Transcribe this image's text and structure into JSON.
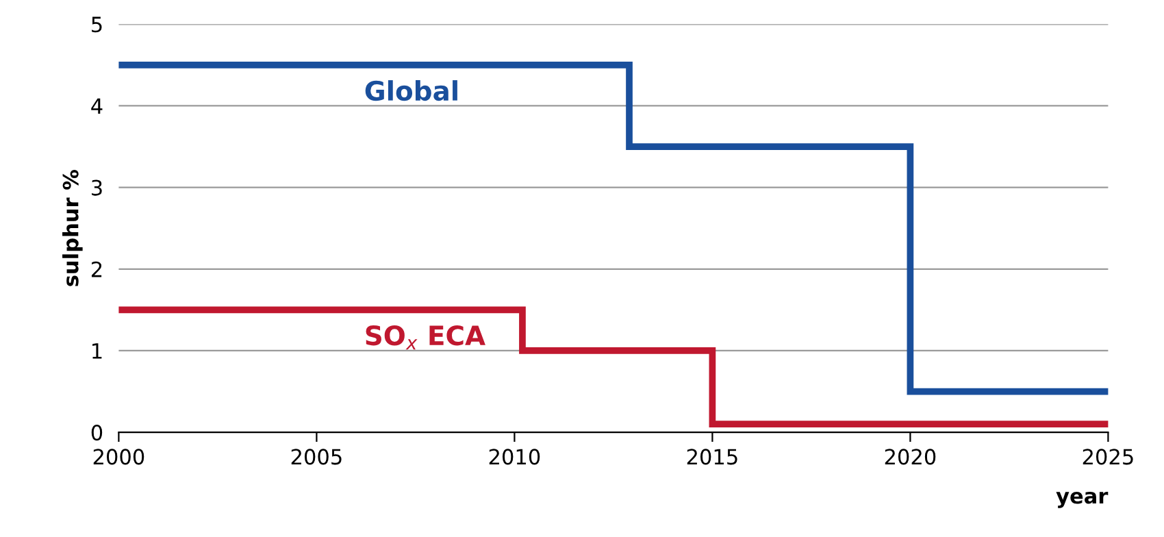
{
  "chart_data": {
    "type": "step",
    "ylabel": "sulphur %",
    "xlabel": "year",
    "xlim": [
      2000,
      2025
    ],
    "xticks": [
      2000,
      2005,
      2010,
      2015,
      2020,
      2025
    ],
    "ylim": [
      0,
      5
    ],
    "yticks": [
      0,
      1,
      2,
      3,
      4,
      5
    ],
    "grid": "y",
    "legend": false,
    "marker": "none",
    "line_style": "solid",
    "series": [
      {
        "color": "#1a4f9c",
        "x": [
          2000,
          2012.9,
          2020,
          2025
        ],
        "values": [
          4.5,
          3.5,
          0.5,
          0.5
        ]
      },
      {
        "color": "#c0182f",
        "x": [
          2000,
          2010.2,
          2015,
          2025
        ],
        "values": [
          1.5,
          1.0,
          0.1,
          0.1
        ]
      }
    ],
    "annotations": [
      {
        "text": "Global",
        "x": 2006.2,
        "y": 4.5
      },
      {
        "text": "SO$_{x}$ ECA",
        "x": 2006.2,
        "y": 1.5
      }
    ]
  }
}
